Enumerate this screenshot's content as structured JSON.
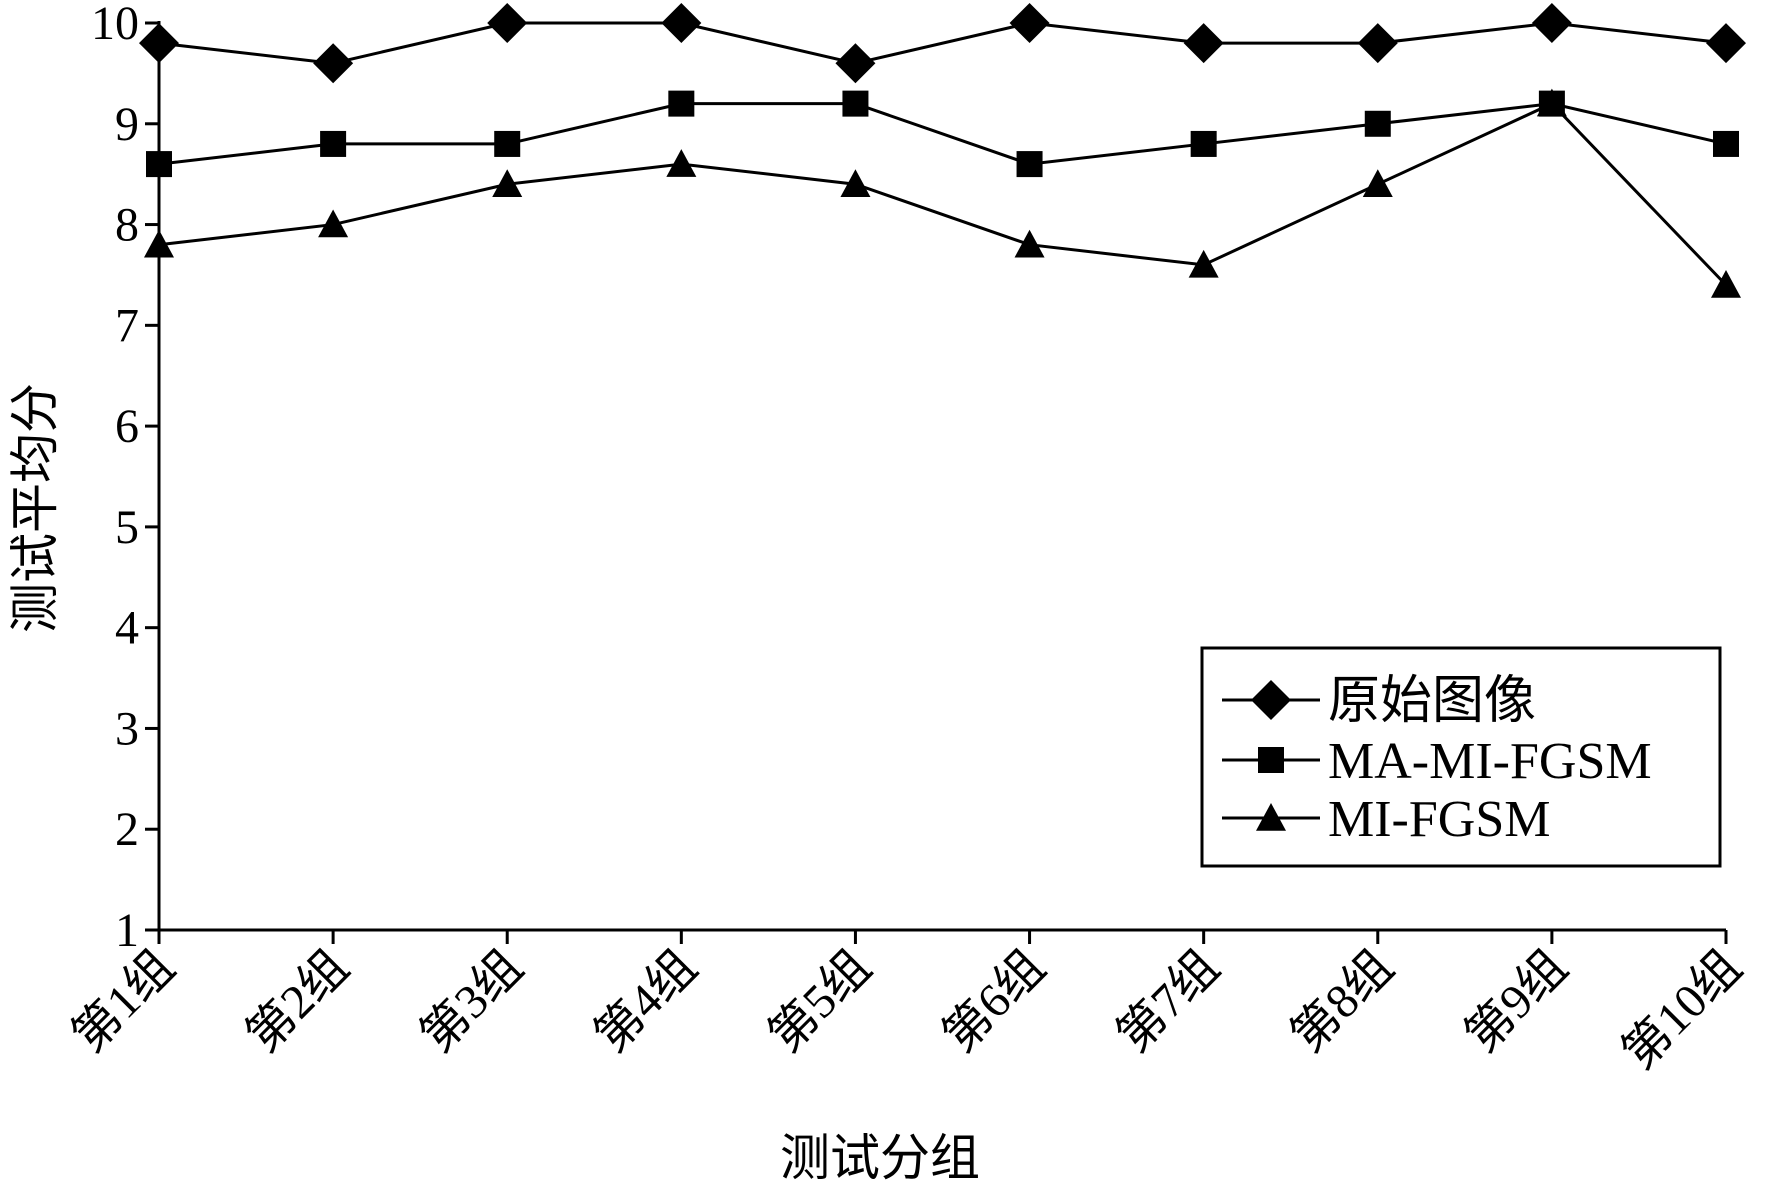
{
  "chart_data": {
    "type": "line",
    "xlabel": "测试分组",
    "ylabel": "测试平均分",
    "ylim": [
      1,
      10
    ],
    "yticks": [
      1,
      2,
      3,
      4,
      5,
      6,
      7,
      8,
      9,
      10
    ],
    "categories": [
      "第1组",
      "第2组",
      "第3组",
      "第4组",
      "第5组",
      "第6组",
      "第7组",
      "第8组",
      "第9组",
      "第10组"
    ],
    "grid": false,
    "legend_position": "bottom-right",
    "series": [
      {
        "name": "原始图像",
        "marker": "diamond",
        "color": "#000000",
        "values": [
          9.8,
          9.6,
          10.0,
          10.0,
          9.6,
          10.0,
          9.8,
          9.8,
          10.0,
          9.8
        ]
      },
      {
        "name": "MA-MI-FGSM",
        "marker": "square",
        "color": "#000000",
        "values": [
          8.6,
          8.8,
          8.8,
          9.2,
          9.2,
          8.6,
          8.8,
          9.0,
          9.2,
          8.8
        ]
      },
      {
        "name": "MI-FGSM",
        "marker": "triangle",
        "color": "#000000",
        "values": [
          7.8,
          8.0,
          8.4,
          8.6,
          8.4,
          7.8,
          7.6,
          8.4,
          9.2,
          7.4
        ]
      }
    ]
  }
}
